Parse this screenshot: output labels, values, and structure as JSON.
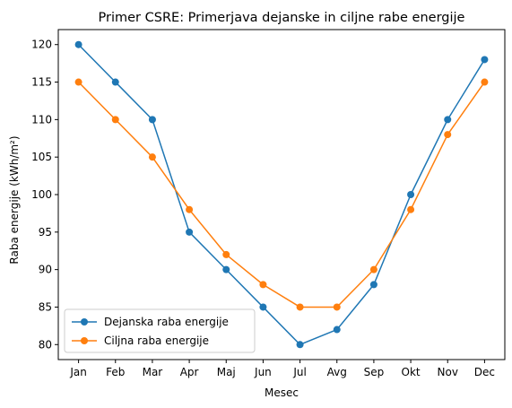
{
  "chart_data": {
    "type": "line",
    "title": "Primer CSRE: Primerjava dejanske in ciljne rabe energije",
    "xlabel": "Mesec",
    "ylabel": "Raba energije (kWh/m²)",
    "categories": [
      "Jan",
      "Feb",
      "Mar",
      "Apr",
      "Maj",
      "Jun",
      "Jul",
      "Avg",
      "Sep",
      "Okt",
      "Nov",
      "Dec"
    ],
    "ylim": [
      78,
      122
    ],
    "yticks": [
      80,
      85,
      90,
      95,
      100,
      105,
      110,
      115,
      120
    ],
    "grid": false,
    "legend_position": "lower-left",
    "series": [
      {
        "name": "Dejanska raba energije",
        "color": "#1f77b4",
        "marker": "circle",
        "values": [
          120,
          115,
          110,
          95,
          90,
          85,
          80,
          82,
          88,
          100,
          110,
          118
        ]
      },
      {
        "name": "Ciljna raba energije",
        "color": "#ff7f0e",
        "marker": "circle",
        "values": [
          115,
          110,
          105,
          98,
          92,
          88,
          85,
          85,
          90,
          98,
          108,
          115
        ]
      }
    ]
  }
}
